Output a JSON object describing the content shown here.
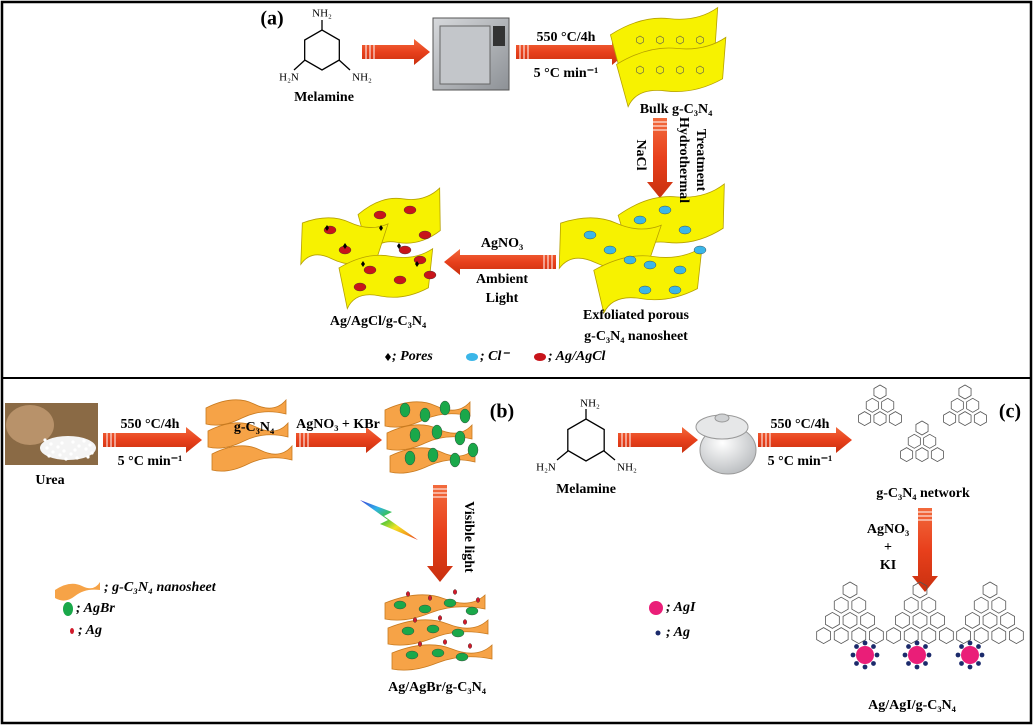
{
  "panel_a": {
    "label": "(a)",
    "melamine": {
      "amines": [
        "NH₂",
        "H₂N",
        "NH₂"
      ],
      "name": "Melamine"
    },
    "heating": {
      "condition": "550 °C/4h",
      "rate": "5 °C min⁻¹"
    },
    "bulk": "Bulk g-C₃N₄",
    "step2": {
      "reagent": "NaCl",
      "process": [
        "Hydrothermal",
        "Treatment"
      ]
    },
    "exfoliated": [
      "Exfoliated porous",
      "g-C₃N₄ nanosheet"
    ],
    "step3": {
      "reagent": "AgNO₃",
      "condition": [
        "Ambient",
        "Light"
      ]
    },
    "product": "Ag/AgCl/g-C₃N₄",
    "legend": [
      "; Pores",
      "; Cl⁻",
      "; Ag/AgCl"
    ]
  },
  "panel_b": {
    "label": "(b)",
    "precursor": "Urea",
    "heating": {
      "condition": "550 °C/4h",
      "rate": "5 °C min⁻¹"
    },
    "intermediate": "g-C₃N₄",
    "reagents": "AgNO₃ + KBr",
    "light": "Visible light",
    "product": "Ag/AgBr/g-C₃N₄",
    "legend": [
      "; g-C₃N₄ nanosheet",
      "; AgBr",
      "; Ag"
    ]
  },
  "panel_c": {
    "label": "(c)",
    "melamine": {
      "amines": [
        "NH₂",
        "H₂N",
        "NH₂"
      ],
      "name": "Melamine"
    },
    "heating": {
      "condition": "550 °C/4h",
      "rate": "5 °C min⁻¹"
    },
    "intermediate": "g-C₃N₄ network",
    "reagents": [
      "AgNO₃",
      "+",
      "KI"
    ],
    "product": "Ag/AgI/g-C₃N₄",
    "legend": [
      "; AgI",
      "; Ag"
    ]
  }
}
